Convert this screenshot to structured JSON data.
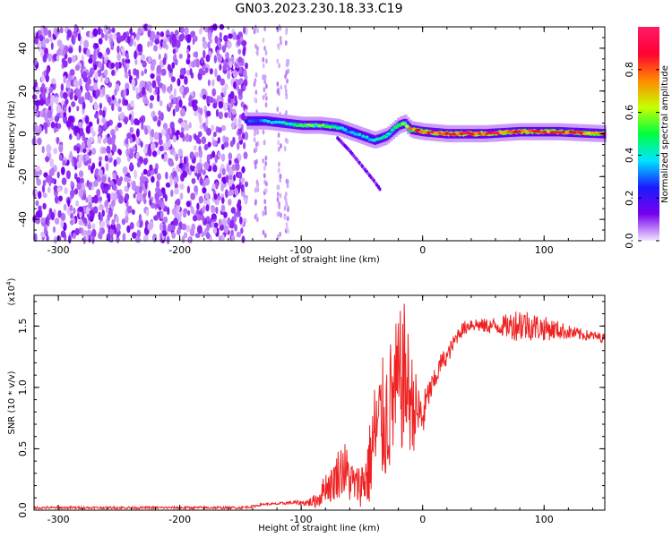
{
  "figure": {
    "title": "GN03.2023.230.18.33.C19"
  },
  "chart_data": [
    {
      "type": "heatmap",
      "xlabel": "Height of straight line (km)",
      "ylabel": "Frequency (Hz)",
      "xlim": [
        -320,
        150
      ],
      "ylim": [
        -50,
        50
      ],
      "xticks": [
        -300,
        -200,
        -100,
        0,
        100
      ],
      "yticks": [
        -40,
        -20,
        0,
        20,
        40
      ],
      "colorbar": {
        "label": "Normalized spectral amplitude",
        "range": [
          0,
          1
        ],
        "ticks": [
          "0.0",
          "0.2",
          "0.4",
          "0.6",
          "0.8"
        ],
        "tick_values": [
          0.0,
          0.2,
          0.4,
          0.6,
          0.8
        ],
        "colormap": [
          "#f2e6ff",
          "#7700ee",
          "#1a1aff",
          "#00e5ff",
          "#00ff40",
          "#c8ff00",
          "#ff8800",
          "#ff0033",
          "#ff1a66"
        ]
      },
      "noise_region": {
        "x_range": [
          -320,
          -145
        ],
        "freq_range": [
          -50,
          50
        ],
        "amplitude": "0.05-0.25"
      },
      "sparse_columns_x": [
        -137,
        -130,
        -118,
        -112
      ],
      "ridge": {
        "x": [
          -145,
          -130,
          -115,
          -100,
          -85,
          -70,
          -60,
          -50,
          -40,
          -30,
          -20,
          -15,
          -10,
          0,
          20,
          50,
          80,
          110,
          150
        ],
        "freq": [
          6,
          6,
          5,
          4,
          4,
          3,
          1,
          -1,
          -3,
          -1,
          4,
          5,
          2,
          1,
          0,
          0,
          1,
          1,
          0
        ],
        "amplitude": [
          0.3,
          0.35,
          0.45,
          0.55,
          0.55,
          0.5,
          0.4,
          0.45,
          0.4,
          0.5,
          0.55,
          0.6,
          0.8,
          0.9,
          0.95,
          0.95,
          0.9,
          0.9,
          0.85
        ]
      },
      "branch": {
        "x": [
          -70,
          -60,
          -50,
          -40,
          -35
        ],
        "freq": [
          -2,
          -8,
          -15,
          -22,
          -26
        ]
      }
    },
    {
      "type": "line",
      "xlabel": "Height of straight line (km)",
      "ylabel": "SNR (10 * v/v)",
      "yscale_note": "(x10",
      "yscale_exponent": "4",
      "yscale_close": ")",
      "xlim": [
        -320,
        150
      ],
      "ylim": [
        0,
        1.75
      ],
      "xticks": [
        -300,
        -200,
        -100,
        0,
        100
      ],
      "yticks": [
        0.0,
        0.5,
        1.0,
        1.5
      ],
      "ytick_labels": [
        "0.0",
        "0.5",
        "1.0",
        "1.5"
      ],
      "color": "#ee2222",
      "series": [
        {
          "x": [
            -320,
            -250,
            -200,
            -150,
            -140,
            -130,
            -120,
            -110,
            -100,
            -95,
            -90,
            -85,
            -80,
            -75,
            -70,
            -65,
            -60,
            -55,
            -50,
            -45,
            -40,
            -35,
            -30,
            -25,
            -20,
            -15,
            -10,
            -5,
            0,
            5,
            10,
            15,
            20,
            25,
            30,
            40,
            50,
            60,
            70,
            80,
            90,
            100,
            110,
            120,
            130,
            140,
            150
          ],
          "y": [
            0.02,
            0.02,
            0.02,
            0.02,
            0.03,
            0.05,
            0.05,
            0.06,
            0.06,
            0.06,
            0.07,
            0.1,
            0.2,
            0.2,
            0.3,
            0.35,
            0.25,
            0.2,
            0.22,
            0.3,
            0.6,
            0.7,
            0.75,
            0.9,
            1.0,
            1.1,
            0.9,
            0.8,
            0.75,
            0.95,
            1.05,
            1.2,
            1.25,
            1.35,
            1.45,
            1.52,
            1.5,
            1.5,
            1.5,
            1.52,
            1.5,
            1.48,
            1.47,
            1.45,
            1.43,
            1.42,
            1.4
          ],
          "amp": [
            0.01,
            0.01,
            0.01,
            0.01,
            0.01,
            0.01,
            0.01,
            0.015,
            0.02,
            0.03,
            0.05,
            0.08,
            0.12,
            0.15,
            0.2,
            0.25,
            0.2,
            0.15,
            0.2,
            0.3,
            0.45,
            0.5,
            0.55,
            0.55,
            0.6,
            0.6,
            0.45,
            0.3,
            0.2,
            0.12,
            0.1,
            0.08,
            0.07,
            0.07,
            0.06,
            0.06,
            0.06,
            0.07,
            0.1,
            0.15,
            0.12,
            0.1,
            0.08,
            0.06,
            0.05,
            0.04,
            0.04
          ]
        }
      ]
    }
  ]
}
